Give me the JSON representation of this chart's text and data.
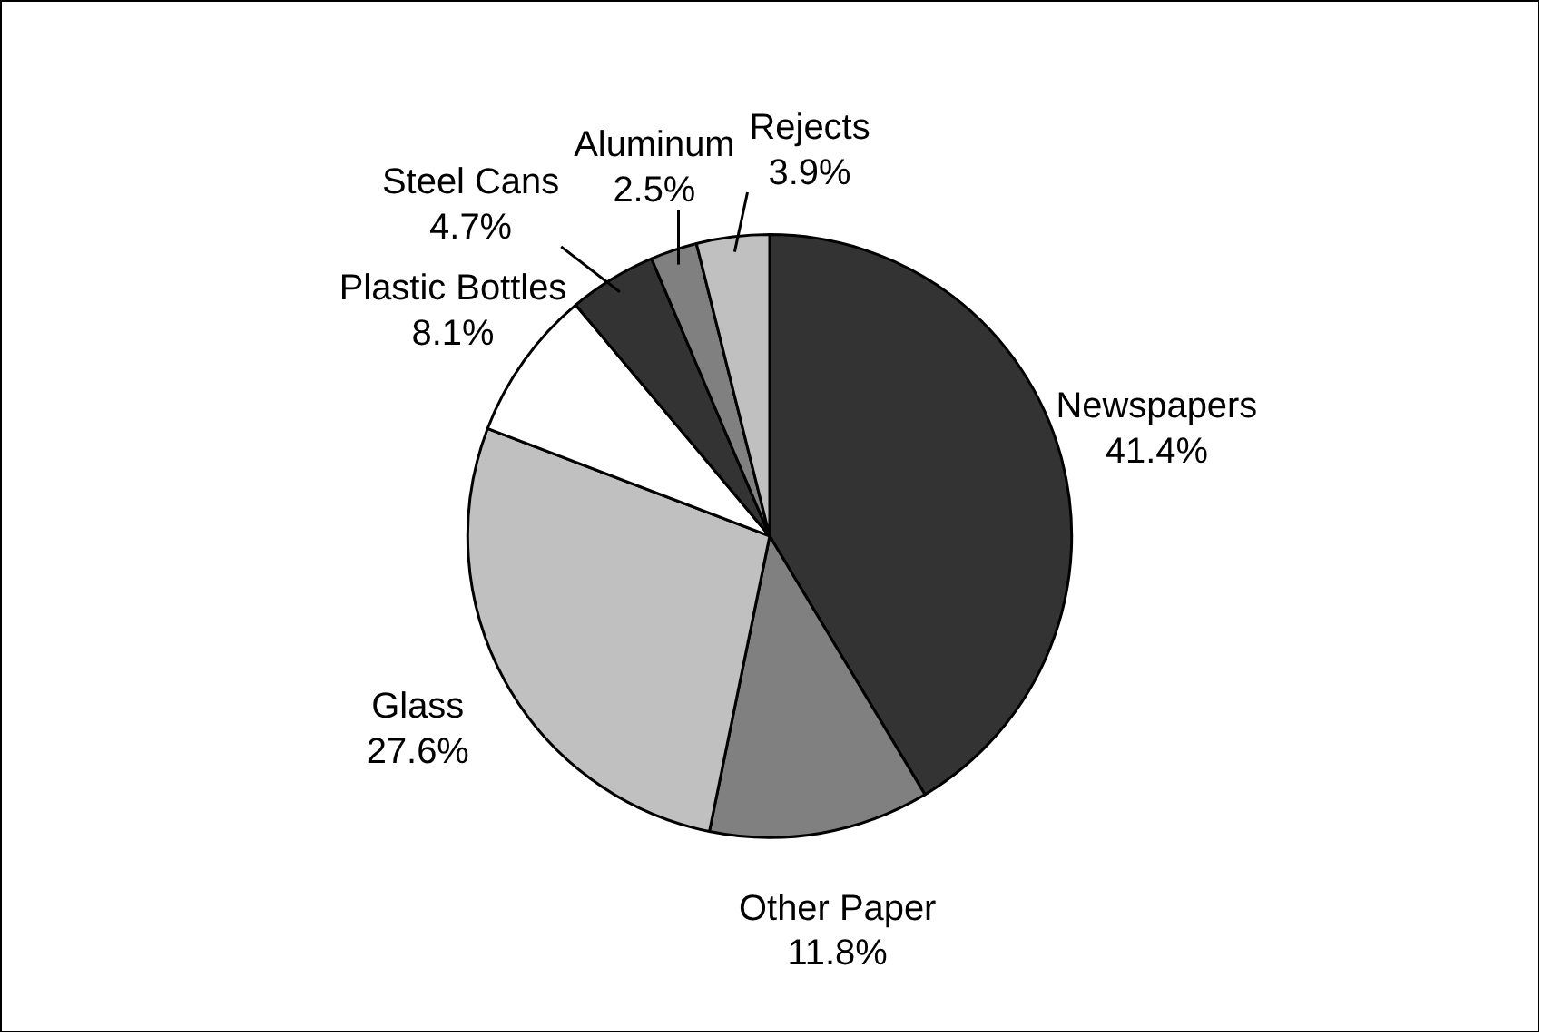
{
  "chart_data": {
    "type": "pie",
    "categories": [
      "Newspapers",
      "Other Paper",
      "Glass",
      "Plastic Bottles",
      "Steel Cans",
      "Aluminum",
      "Rejects"
    ],
    "values": [
      41.4,
      11.8,
      27.6,
      8.1,
      4.7,
      2.5,
      3.9
    ],
    "value_labels": [
      "41.4%",
      "11.8%",
      "27.6%",
      "8.1%",
      "4.7%",
      "2.5%",
      "3.9%"
    ],
    "colors": [
      "#333333",
      "#808080",
      "#c0c0c0",
      "#ffffff",
      "#333333",
      "#808080",
      "#c0c0c0"
    ],
    "legend": false
  }
}
